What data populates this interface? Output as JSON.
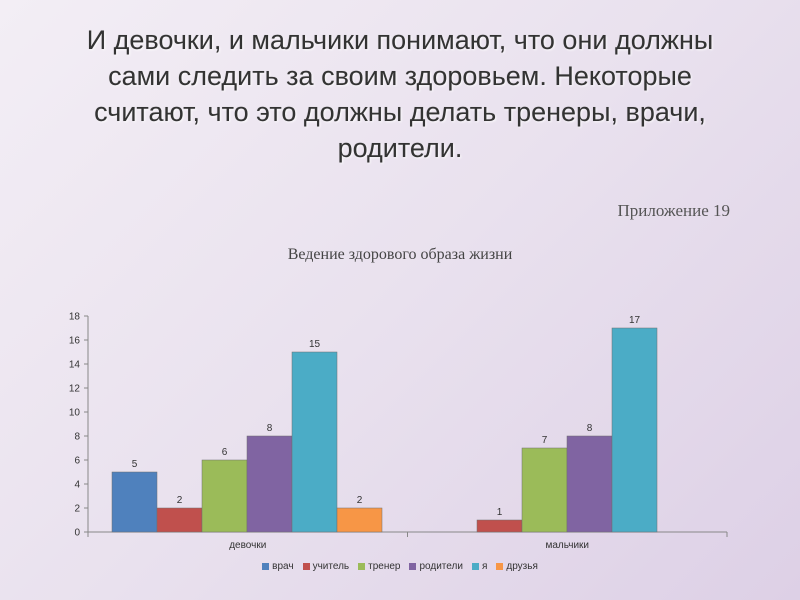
{
  "title": "И девочки, и мальчики понимают, что они должны сами следить за своим здоровьем. Некоторые считают, что это должны делать тренеры, врачи, родители.",
  "appendix": "Приложение 19",
  "chart_data": {
    "type": "bar",
    "title": "Ведение здорового образа жизни",
    "categories": [
      "девочки",
      "мальчики"
    ],
    "series": [
      {
        "name": "врач",
        "values": [
          5,
          0
        ],
        "color": "#4f81bd"
      },
      {
        "name": "учитель",
        "values": [
          2,
          1
        ],
        "color": "#c0504d"
      },
      {
        "name": "тренер",
        "values": [
          6,
          7
        ],
        "color": "#9bbb59"
      },
      {
        "name": "родители",
        "values": [
          8,
          8
        ],
        "color": "#8064a2"
      },
      {
        "name": "я",
        "values": [
          15,
          17
        ],
        "color": "#4bacc6"
      },
      {
        "name": "друзья",
        "values": [
          2,
          0
        ],
        "color": "#f79646"
      }
    ],
    "ylim": [
      0,
      18
    ],
    "yticks": [
      0,
      2,
      4,
      6,
      8,
      10,
      12,
      14,
      16,
      18
    ],
    "grid": false,
    "legend": "bottom"
  }
}
